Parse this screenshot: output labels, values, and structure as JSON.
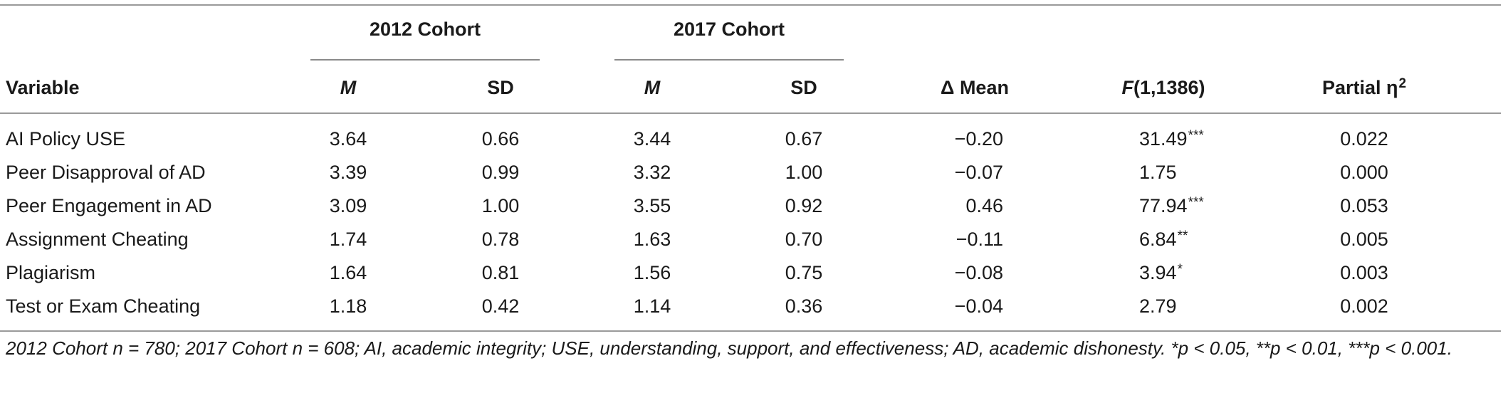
{
  "cohorts": {
    "c2012": "2012 Cohort",
    "c2017": "2017 Cohort"
  },
  "columns": {
    "variable": "Variable",
    "m": "M",
    "sd": "SD",
    "delta_mean": "Δ Mean",
    "f_italic": "F",
    "f_rest": "(1,1386)",
    "partial_eta": "Partial η",
    "partial_eta_sup": "2"
  },
  "rows": [
    {
      "variable": "AI Policy USE",
      "m2012": "3.64",
      "sd2012": "0.66",
      "m2017": "3.44",
      "sd2017": "0.67",
      "delta": "−0.20",
      "f": "31.49",
      "sig": "***",
      "eta": "0.022"
    },
    {
      "variable": "Peer Disapproval of AD",
      "m2012": "3.39",
      "sd2012": "0.99",
      "m2017": "3.32",
      "sd2017": "1.00",
      "delta": "−0.07",
      "f": "1.75",
      "sig": "",
      "eta": "0.000"
    },
    {
      "variable": "Peer Engagement in AD",
      "m2012": "3.09",
      "sd2012": "1.00",
      "m2017": "3.55",
      "sd2017": "0.92",
      "delta": "0.46",
      "f": "77.94",
      "sig": "***",
      "eta": "0.053"
    },
    {
      "variable": "Assignment Cheating",
      "m2012": "1.74",
      "sd2012": "0.78",
      "m2017": "1.63",
      "sd2017": "0.70",
      "delta": "−0.11",
      "f": "6.84",
      "sig": "**",
      "eta": "0.005"
    },
    {
      "variable": "Plagiarism",
      "m2012": "1.64",
      "sd2012": "0.81",
      "m2017": "1.56",
      "sd2017": "0.75",
      "delta": "−0.08",
      "f": "3.94",
      "sig": "*",
      "eta": "0.003"
    },
    {
      "variable": "Test or Exam Cheating",
      "m2012": "1.18",
      "sd2012": "0.42",
      "m2017": "1.14",
      "sd2017": "0.36",
      "delta": "−0.04",
      "f": "2.79",
      "sig": "",
      "eta": "0.002"
    }
  ],
  "note": "2012 Cohort n = 780; 2017 Cohort n = 608; AI, academic integrity; USE, understanding, support, and effectiveness; AD, academic dishonesty. *p < 0.05, **p < 0.01, ***p < 0.001."
}
